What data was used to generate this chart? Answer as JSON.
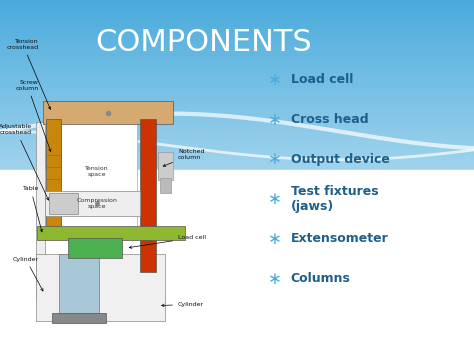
{
  "title": "COMPONENTS",
  "title_color": "#FFFFFF",
  "title_fontsize": 22,
  "bullet_items": [
    "Load cell",
    "Cross head",
    "Output device",
    "Test fixtures\n(jaws)",
    "Extensometer",
    "Columns"
  ],
  "bullet_color": "#1F5F8B",
  "bullet_fontsize": 9,
  "bullet_star_color": "#4AABDB"
}
